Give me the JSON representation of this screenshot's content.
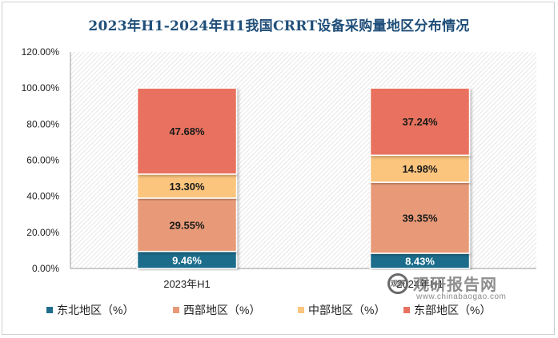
{
  "title": "2023年H1-2024年H1我国CRRT设备采购量地区分布情况",
  "chart_data": {
    "type": "bar",
    "stacked": true,
    "title": "2023年H1-2024年H1我国CRRT设备采购量地区分布情况",
    "categories": [
      "2023年H1",
      "2024年H1"
    ],
    "ylim": [
      0,
      120
    ],
    "yticks": [
      "0.00%",
      "20.00%",
      "40.00%",
      "60.00%",
      "80.00%",
      "100.00%",
      "120.00%"
    ],
    "xlabel": "",
    "ylabel": "",
    "grid": true,
    "legend_position": "bottom",
    "series": [
      {
        "name": "东北地区（%）",
        "color": "#1f6d8c",
        "values": [
          9.46,
          8.43
        ],
        "labels": [
          "9.46%",
          "8.43%"
        ],
        "label_color": "#ffffff"
      },
      {
        "name": "西部地区（%）",
        "color": "#e89a78",
        "values": [
          29.55,
          39.35
        ],
        "labels": [
          "29.55%",
          "39.35%"
        ],
        "label_color": "#1a1a1a"
      },
      {
        "name": "中部地区（%）",
        "color": "#fbc57e",
        "values": [
          13.3,
          14.98
        ],
        "labels": [
          "13.30%",
          "14.98%"
        ],
        "label_color": "#1a1a1a"
      },
      {
        "name": "东部地区（%）",
        "color": "#e8725f",
        "values": [
          47.68,
          37.24
        ],
        "labels": [
          "47.68%",
          "37.24%"
        ],
        "label_color": "#1a1a1a"
      }
    ]
  },
  "watermark": {
    "logo_text": "观研",
    "cn": "观研报告网",
    "en": "www.chinabaogao.com"
  }
}
